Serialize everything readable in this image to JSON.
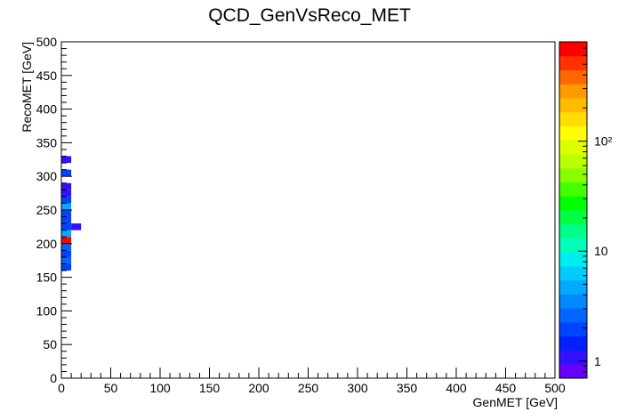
{
  "chart_data": {
    "type": "heatmap",
    "title": "QCD_GenVsReco_MET",
    "xlabel": "GenMET  [GeV]",
    "ylabel": "RecoMET  [GeV]",
    "xlim": [
      0,
      500
    ],
    "ylim": [
      0,
      500
    ],
    "x_ticks": [
      "0",
      "50",
      "100",
      "150",
      "200",
      "250",
      "300",
      "350",
      "400",
      "450",
      "500"
    ],
    "y_ticks": [
      "0",
      "50",
      "100",
      "150",
      "200",
      "250",
      "300",
      "350",
      "400",
      "450",
      "500"
    ],
    "z_scale": "log",
    "z_range": [
      0.7,
      800
    ],
    "z_ticks": [
      {
        "value": 1,
        "label": "1"
      },
      {
        "value": 10,
        "label": "10"
      },
      {
        "value": 100,
        "label": "10²"
      }
    ],
    "palette": [
      "#6600ff",
      "#3311ff",
      "#0022ff",
      "#0044ff",
      "#0066ff",
      "#0088ff",
      "#00aaff",
      "#00ccff",
      "#00eeee",
      "#00ffbb",
      "#00ff88",
      "#00ff44",
      "#00ff00",
      "#44ff00",
      "#88ff00",
      "#bbff00",
      "#ddff00",
      "#ffff00",
      "#ffdd00",
      "#ffbb00",
      "#ff9900",
      "#ff6600",
      "#ff3300",
      "#ff0000"
    ],
    "cells": [
      {
        "x0": 0,
        "x1": 10,
        "y0": 160,
        "y1": 170,
        "z": 2
      },
      {
        "x0": 0,
        "x1": 10,
        "y0": 170,
        "y1": 180,
        "z": 3
      },
      {
        "x0": 0,
        "x1": 10,
        "y0": 180,
        "y1": 190,
        "z": 2
      },
      {
        "x0": 0,
        "x1": 10,
        "y0": 190,
        "y1": 200,
        "z": 3
      },
      {
        "x0": 0,
        "x1": 10,
        "y0": 200,
        "y1": 210,
        "z": 600
      },
      {
        "x0": 0,
        "x1": 10,
        "y0": 210,
        "y1": 220,
        "z": 5
      },
      {
        "x0": 0,
        "x1": 10,
        "y0": 220,
        "y1": 230,
        "z": 2
      },
      {
        "x0": 10,
        "x1": 20,
        "y0": 220,
        "y1": 230,
        "z": 1
      },
      {
        "x0": 0,
        "x1": 10,
        "y0": 230,
        "y1": 240,
        "z": 2
      },
      {
        "x0": 0,
        "x1": 10,
        "y0": 240,
        "y1": 250,
        "z": 2
      },
      {
        "x0": 0,
        "x1": 10,
        "y0": 250,
        "y1": 260,
        "z": 5
      },
      {
        "x0": 0,
        "x1": 10,
        "y0": 260,
        "y1": 270,
        "z": 2
      },
      {
        "x0": 0,
        "x1": 10,
        "y0": 270,
        "y1": 280,
        "z": 1.2
      },
      {
        "x0": 0,
        "x1": 10,
        "y0": 280,
        "y1": 290,
        "z": 1
      },
      {
        "x0": 0,
        "x1": 10,
        "y0": 300,
        "y1": 310,
        "z": 2
      },
      {
        "x0": 0,
        "x1": 10,
        "y0": 320,
        "y1": 330,
        "z": 1
      }
    ]
  }
}
